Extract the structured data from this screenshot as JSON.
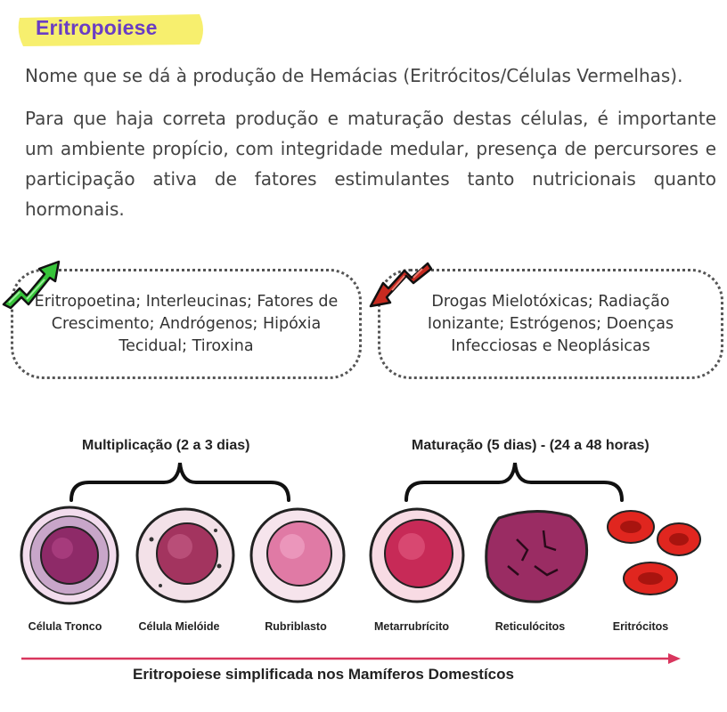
{
  "header": {
    "title": "Eritropoiese"
  },
  "intro": {
    "paragraph1": "Nome que se dá à produção de Hemácias (Eritrócitos/Células Vermelhas).",
    "paragraph2": "Para que haja correta produção e maturação destas células, é importante um ambiente propício, com integridade medular, presença de percursores e participação ativa de fatores estimulantes tanto nutricionais quanto hormonais."
  },
  "factors": {
    "stimulating": "Eritropoetina; Interleucinas; Fatores de Crescimento; Andrógenos; Hipóxia Tecidual; Tiroxina",
    "inhibiting": "Drogas Mielotóxicas; Radiação Ionizante; Estrógenos; Doenças Infecciosas e Neoplásicas",
    "stimulating_arrow_color": "#2fbf2f",
    "inhibiting_arrow_color": "#c0211b"
  },
  "phases": {
    "multiplication": "Multiplicação (2 a 3 dias)",
    "maturation": "Maturação (5 dias) - (24 a 48 horas)"
  },
  "cells": [
    {
      "label": "Célula Tronco",
      "icon": "stem-cell-icon"
    },
    {
      "label": "Célula Mielóide",
      "icon": "myeloid-cell-icon"
    },
    {
      "label": "Rubriblasto",
      "icon": "rubriblast-icon"
    },
    {
      "label": "Metarrubrícito",
      "icon": "metarubricyte-icon"
    },
    {
      "label": "Reticulócitos",
      "icon": "reticulocyte-icon"
    },
    {
      "label": "Eritrócitos",
      "icon": "erythrocyte-icon"
    }
  ],
  "footer": {
    "caption": "Eritropoiese  simplificada nos Mamíferos Domestícos",
    "arrow_color": "#d9365e"
  }
}
